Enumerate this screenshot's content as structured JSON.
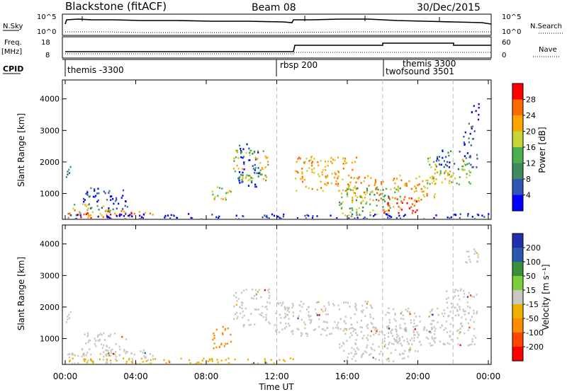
{
  "header": {
    "title": "Blackstone (fitACF)",
    "beam": "Beam 08",
    "date": "30/Dec/2015"
  },
  "noise_panel": {
    "left_label": "N.Sky",
    "right_label": "N.Search",
    "left_ticks": [
      "10^5",
      "10^0"
    ],
    "right_ticks": [
      "10^5",
      "10^0"
    ]
  },
  "freq_panel": {
    "left_label_1": "Freq.",
    "left_label_2": "[MHz]",
    "right_label": "Nave",
    "left_ticks": [
      "18",
      "8"
    ],
    "right_ticks": [
      "60",
      "0"
    ]
  },
  "cpid": {
    "label": "CPID",
    "entries": [
      {
        "name": "themis -3300",
        "start_hour": 0.0
      },
      {
        "name": "rbsp 200",
        "start_hour": 12.0
      },
      {
        "name": "themis 3300",
        "start_hour": 19.3,
        "row": 0
      },
      {
        "name": "twofsound 3501",
        "start_hour": 18.0,
        "row": 1
      }
    ]
  },
  "x_axis": {
    "label": "Time UT",
    "ticks": [
      "00:00",
      "04:00",
      "08:00",
      "12:00",
      "16:00",
      "20:00",
      "00:00"
    ]
  },
  "colors": {
    "power": [
      "#0000ff",
      "#2f55b5",
      "#3e8c5e",
      "#4caf50",
      "#c8d43a",
      "#ffa500",
      "#ff6a00",
      "#ff0000"
    ],
    "velocity": [
      "#1f2fb0",
      "#2a57b0",
      "#3a8f3a",
      "#7ccf3a",
      "#c8c8c0",
      "#f0b000",
      "#ff8c00",
      "#ff4500",
      "#ff0000"
    ]
  },
  "chart_data": [
    {
      "type": "heatmap",
      "name": "power",
      "ylabel": "Slant Range [km]",
      "yticks": [
        1000,
        2000,
        3000,
        4000
      ],
      "ylim": [
        180,
        4600
      ],
      "xlim_hours": [
        0,
        24
      ],
      "colorbar": {
        "label": "Power [dB]",
        "ticks": [
          "4",
          "8",
          "12",
          "16",
          "20",
          "24",
          "28"
        ]
      },
      "regions": [
        {
          "t0": 0.0,
          "t1": 0.4,
          "r0": 1500,
          "r1": 1900,
          "level": 2
        },
        {
          "t0": 0.1,
          "t1": 5.0,
          "r0": 180,
          "r1": 500,
          "level": 6
        },
        {
          "t0": 0.3,
          "t1": 2.5,
          "r0": 300,
          "r1": 700,
          "level": 4
        },
        {
          "t0": 1.0,
          "t1": 3.5,
          "r0": 500,
          "r1": 1200,
          "level": 1
        },
        {
          "t0": 0.2,
          "t1": 24.0,
          "r0": 180,
          "r1": 380,
          "level": 0
        },
        {
          "t0": 8.3,
          "t1": 9.5,
          "r0": 800,
          "r1": 1300,
          "level": 4
        },
        {
          "t0": 9.5,
          "t1": 11.5,
          "r0": 1400,
          "r1": 2400,
          "level": 4
        },
        {
          "t0": 9.8,
          "t1": 11.0,
          "r0": 1200,
          "r1": 2600,
          "level": 1
        },
        {
          "t0": 13.0,
          "t1": 16.5,
          "r0": 1100,
          "r1": 2200,
          "level": 5
        },
        {
          "t0": 16.0,
          "t1": 18.0,
          "r0": 700,
          "r1": 1600,
          "level": 5
        },
        {
          "t0": 15.5,
          "t1": 19.0,
          "r0": 300,
          "r1": 1200,
          "level": 3
        },
        {
          "t0": 18.0,
          "t1": 20.0,
          "r0": 400,
          "r1": 900,
          "level": 7
        },
        {
          "t0": 18.5,
          "t1": 21.0,
          "r0": 800,
          "r1": 1600,
          "level": 5
        },
        {
          "t0": 20.5,
          "t1": 23.0,
          "r0": 1300,
          "r1": 2200,
          "level": 4
        },
        {
          "t0": 22.5,
          "t1": 23.2,
          "r0": 2500,
          "r1": 3300,
          "level": 1
        },
        {
          "t0": 23.0,
          "t1": 23.5,
          "r0": 3300,
          "r1": 3900,
          "level": 0
        },
        {
          "t0": 21.0,
          "t1": 23.4,
          "r0": 1800,
          "r1": 2400,
          "level": 1
        }
      ]
    },
    {
      "type": "heatmap",
      "name": "velocity",
      "ylabel": "Slant Range [km]",
      "yticks": [
        1000,
        2000,
        3000,
        4000
      ],
      "ylim": [
        180,
        4600
      ],
      "xlim_hours": [
        0,
        24
      ],
      "colorbar": {
        "label": "Velocity [m s⁻¹]",
        "ticks": [
          "200",
          "100",
          "50",
          "15",
          "-15",
          "-50",
          "-100",
          "-200"
        ]
      },
      "regions": [
        {
          "t0": 0.0,
          "t1": 0.4,
          "r0": 1500,
          "r1": 1900,
          "level": 4
        },
        {
          "t0": 0.1,
          "t1": 5.0,
          "r0": 200,
          "r1": 700,
          "level": 4
        },
        {
          "t0": 1.0,
          "t1": 3.5,
          "r0": 500,
          "r1": 1200,
          "level": 4
        },
        {
          "t0": 0.2,
          "t1": 13.0,
          "r0": 180,
          "r1": 400,
          "level": 5
        },
        {
          "t0": 8.2,
          "t1": 9.4,
          "r0": 700,
          "r1": 1400,
          "level": 6
        },
        {
          "t0": 9.5,
          "t1": 11.6,
          "r0": 1400,
          "r1": 2600,
          "level": 4
        },
        {
          "t0": 11.8,
          "t1": 17.5,
          "r0": 1100,
          "r1": 2200,
          "level": 4
        },
        {
          "t0": 15.5,
          "t1": 20.0,
          "r0": 300,
          "r1": 1400,
          "level": 4
        },
        {
          "t0": 18.0,
          "t1": 23.3,
          "r0": 800,
          "r1": 2000,
          "level": 4
        },
        {
          "t0": 21.5,
          "t1": 23.4,
          "r0": 1800,
          "r1": 2600,
          "level": 4
        },
        {
          "t0": 22.6,
          "t1": 23.5,
          "r0": 3300,
          "r1": 3900,
          "level": 4
        }
      ]
    }
  ]
}
